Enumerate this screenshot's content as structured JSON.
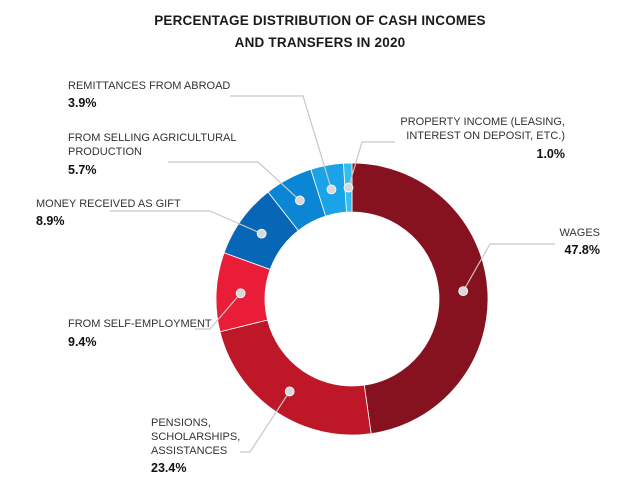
{
  "title_line1": "PERCENTAGE DISTRIBUTION OF CASH INCOMES",
  "title_line2": "AND TRANSFERS IN 2020",
  "chart_data": {
    "type": "pie",
    "title": "PERCENTAGE DISTRIBUTION OF CASH INCOMES AND TRANSFERS IN 2020",
    "unit": "%",
    "donut": true,
    "slices": [
      {
        "label": "WAGES",
        "value": 47.8,
        "value_text": "47.8%",
        "color": "#861220"
      },
      {
        "label": "PENSIONS, SCHOLARSHIPS, ASSISTANCES",
        "value": 23.4,
        "value_text": "23.4%",
        "color": "#bd1728"
      },
      {
        "label": "FROM SELF-EMPLOYMENT",
        "value": 9.4,
        "value_text": "9.4%",
        "color": "#ea1d38"
      },
      {
        "label": "MONEY RECEIVED AS GIFT",
        "value": 8.9,
        "value_text": "8.9%",
        "color": "#0866b7"
      },
      {
        "label": "FROM SELLING AGRICULTURAL PRODUCTION",
        "value": 5.7,
        "value_text": "5.7%",
        "color": "#0a86d4"
      },
      {
        "label": "REMITTANCES FROM ABROAD",
        "value": 3.9,
        "value_text": "3.9%",
        "color": "#1aa3e6"
      },
      {
        "label": "PROPERTY INCOME (LEASING, INTEREST ON DEPOSIT, ETC.)",
        "value": 1.0,
        "value_text": "1.0%",
        "color": "#35bdf2"
      }
    ]
  }
}
